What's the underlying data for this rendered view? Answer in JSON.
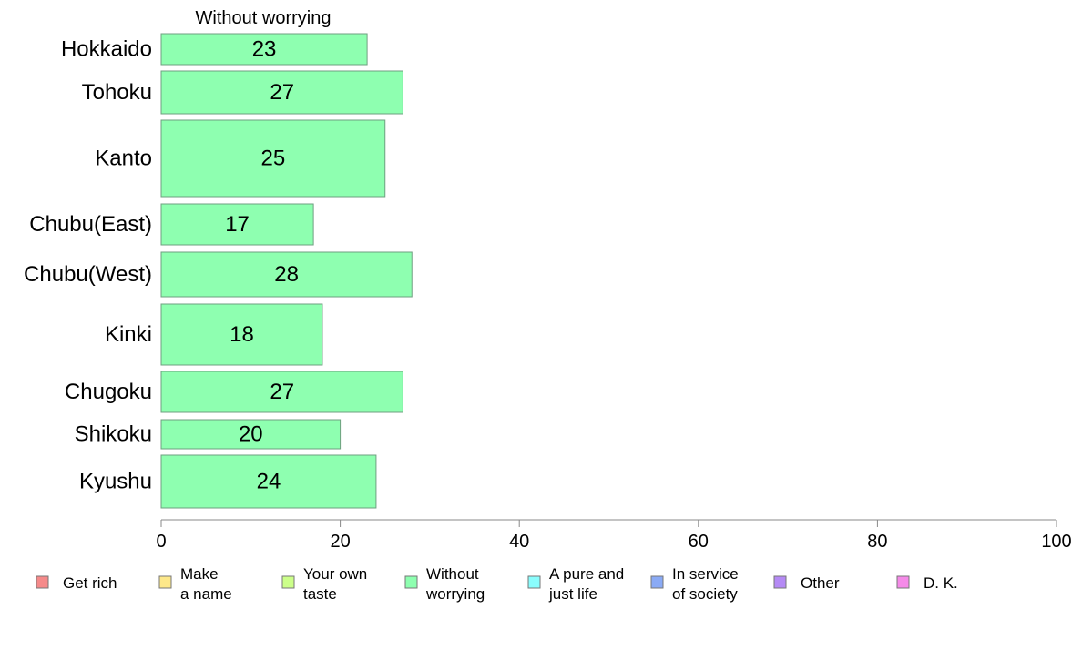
{
  "chart_data": {
    "type": "bar",
    "orientation": "horizontal",
    "title": "Without worrying",
    "categories": [
      "Hokkaido",
      "Tohoku",
      "Kanto",
      "Chubu(East)",
      "Chubu(West)",
      "Kinki",
      "Chugoku",
      "Shikoku",
      "Kyushu"
    ],
    "values": [
      23,
      27,
      25,
      17,
      28,
      18,
      27,
      20,
      24
    ],
    "bar_color": "#8effb0",
    "xlim": [
      0,
      100
    ],
    "xticks": [
      0,
      20,
      40,
      60,
      80,
      100
    ],
    "grid": false,
    "legend_position": "bottom",
    "legend": [
      {
        "label": [
          "Get rich"
        ],
        "color": "#f58a8a"
      },
      {
        "label": [
          "Make",
          "a name"
        ],
        "color": "#fde88a"
      },
      {
        "label": [
          "Your own",
          "taste"
        ],
        "color": "#ccff8a"
      },
      {
        "label": [
          "Without",
          "worrying"
        ],
        "color": "#8effb0"
      },
      {
        "label": [
          "A pure and",
          "just life"
        ],
        "color": "#8afdfd"
      },
      {
        "label": [
          "In service",
          "of society"
        ],
        "color": "#8aaaf5"
      },
      {
        "label": [
          "Other"
        ],
        "color": "#b58af5"
      },
      {
        "label": [
          "D. K."
        ],
        "color": "#f58ae8"
      }
    ]
  }
}
